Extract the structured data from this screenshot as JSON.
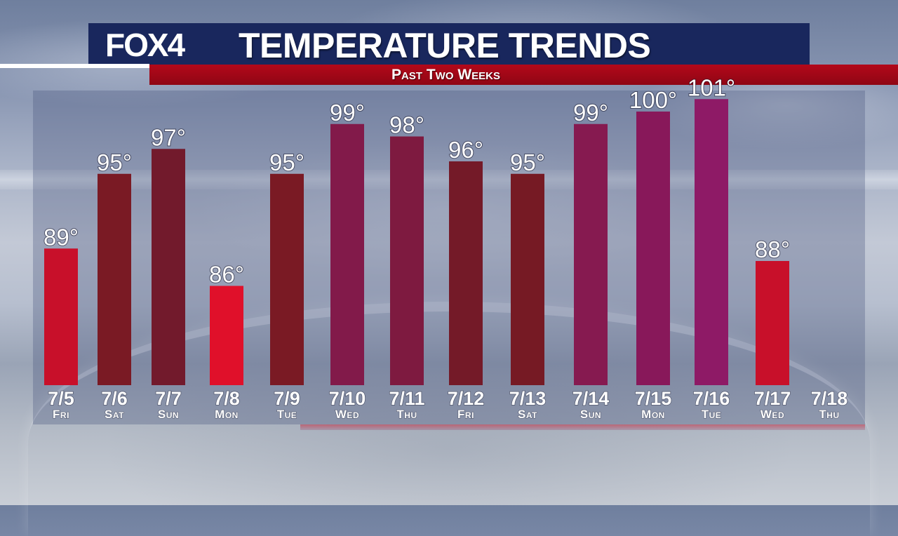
{
  "header": {
    "logo": "FOX4",
    "title": "TEMPERATURE TRENDS",
    "subtitle": "Past Two Weeks"
  },
  "colors": {
    "header_navy": "#19275d",
    "subtitle_red": "#a5071a"
  },
  "chart_data": {
    "type": "bar",
    "title": "TEMPERATURE TRENDS",
    "subtitle": "Past Two Weeks",
    "categories": [
      "7/5",
      "7/6",
      "7/7",
      "7/8",
      "7/9",
      "7/10",
      "7/11",
      "7/12",
      "7/13",
      "7/14",
      "7/15",
      "7/16",
      "7/17",
      "7/18"
    ],
    "days": [
      "Fri",
      "Sat",
      "Sun",
      "Mon",
      "Tue",
      "Wed",
      "Thu",
      "Fri",
      "Sat",
      "Sun",
      "Mon",
      "Tue",
      "Wed",
      "Thu"
    ],
    "values": [
      89,
      95,
      97,
      86,
      95,
      99,
      98,
      96,
      95,
      99,
      100,
      101,
      88,
      null
    ],
    "value_labels": [
      "89°",
      "95°",
      "97°",
      "86°",
      "95°",
      "99°",
      "98°",
      "96°",
      "95°",
      "99°",
      "100°",
      "101°",
      "88°",
      ""
    ],
    "bar_colors": [
      "#c8102a",
      "#7a1a24",
      "#721a2c",
      "#e0102a",
      "#7a1a24",
      "#821a4a",
      "#7e1a40",
      "#741a28",
      "#761a24",
      "#861a50",
      "#88185a",
      "#8e1a66",
      "#c8102a",
      ""
    ],
    "grid": false,
    "legend": "none"
  }
}
